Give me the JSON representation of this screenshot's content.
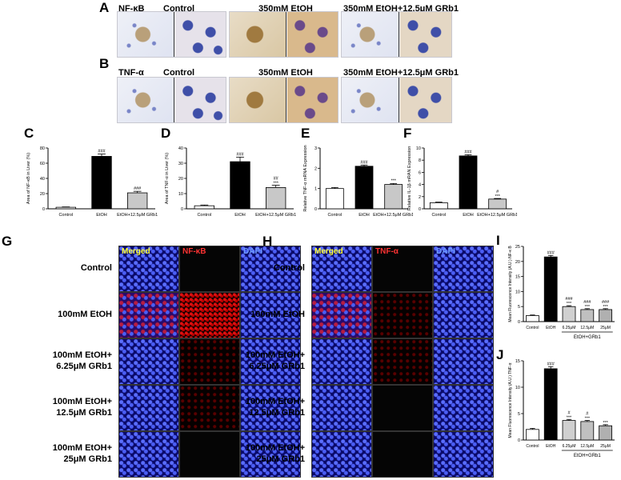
{
  "panels": {
    "A": {
      "letter": "A",
      "marker": "NF-κB",
      "titles": [
        "Control",
        "350mM EtOH",
        "350mM EtOH+12.5μM GRb1"
      ]
    },
    "B": {
      "letter": "B",
      "marker": "TNF-α",
      "titles": [
        "Control",
        "350mM EtOH",
        "350mM EtOH+12.5μM GRb1"
      ]
    },
    "G": {
      "letter": "G",
      "headers": [
        "Merged",
        "NF-κB",
        "DAPI"
      ],
      "rows": [
        "Control",
        "100mM EtOH",
        "100mM EtOH+ 6.25μM GRb1",
        "100mM EtOH+ 12.5μM GRb1",
        "100mM EtOH+ 25μM GRb1"
      ]
    },
    "H": {
      "letter": "H",
      "headers": [
        "Merged",
        "TNF-α",
        "DAPI"
      ],
      "rows": [
        "Control",
        "100mM EtOH",
        "100mM EtOH+ 6.25μM GRb1",
        "100mM EtOH+ 12.5μM GRb1",
        "100mM EtOH+ 25μM GRb1"
      ]
    }
  },
  "chart_data": [
    {
      "panel": "C",
      "type": "bar",
      "ylabel": "Area of NF-κB  in Liver (%)",
      "categories": [
        "Control",
        "EtOH",
        "EtOH+12.5μM GRb1"
      ],
      "values": [
        2,
        69,
        21
      ],
      "errors": [
        0.5,
        3,
        2
      ],
      "ylim": [
        0,
        80
      ],
      "yticks": [
        "0",
        "20",
        "40",
        "60",
        "80"
      ],
      "sig": [
        "",
        "###",
        "###"
      ],
      "sig2": [
        "",
        "",
        ""
      ],
      "fills": [
        "#ffffff",
        "#000000",
        "#c8c8c8"
      ]
    },
    {
      "panel": "D",
      "type": "bar",
      "ylabel": "Area of TNF-α  in Liver (%)",
      "categories": [
        "Control",
        "EtOH",
        "EtOH+12.5μM GRb1"
      ],
      "values": [
        2,
        31,
        14
      ],
      "errors": [
        0.5,
        3,
        1.5
      ],
      "ylim": [
        0,
        40
      ],
      "yticks": [
        "0",
        "10",
        "20",
        "30",
        "40"
      ],
      "sig": [
        "",
        "###",
        "##"
      ],
      "sig2": [
        "",
        "",
        "***"
      ],
      "fills": [
        "#ffffff",
        "#000000",
        "#c8c8c8"
      ]
    },
    {
      "panel": "E",
      "type": "bar",
      "ylabel": "Relative TNF-α mRNA Expression",
      "categories": [
        "Control",
        "EtOH",
        "EtOH+12.5μM GRb1"
      ],
      "values": [
        1,
        2.1,
        1.2
      ],
      "errors": [
        0.05,
        0.06,
        0.05
      ],
      "ylim": [
        0,
        3
      ],
      "yticks": [
        "0",
        "1",
        "2",
        "3"
      ],
      "sig": [
        "",
        "###",
        "***"
      ],
      "sig2": [
        "",
        "",
        ""
      ],
      "fills": [
        "#ffffff",
        "#000000",
        "#c8c8c8"
      ]
    },
    {
      "panel": "F",
      "type": "bar",
      "ylabel": "Relative IL-1β  mRAN Expression",
      "categories": [
        "Control",
        "EtOH",
        "EtOH+12.5μM GRb1"
      ],
      "values": [
        1,
        8.7,
        1.6
      ],
      "errors": [
        0.1,
        0.2,
        0.1
      ],
      "ylim": [
        0,
        10
      ],
      "yticks": [
        "0",
        "2",
        "4",
        "6",
        "8",
        "10"
      ],
      "sig": [
        "",
        "###",
        "#"
      ],
      "sig2": [
        "",
        "",
        "***"
      ],
      "fills": [
        "#ffffff",
        "#000000",
        "#c8c8c8"
      ]
    },
    {
      "panel": "I",
      "type": "bar",
      "ylabel": "Mean Fluorescence Intensity (A.U.) NF-κ B",
      "categories": [
        "Control",
        "EtOH",
        "6.25μM",
        "12.5μM",
        "25μM"
      ],
      "values": [
        2,
        21.5,
        5,
        4,
        4
      ],
      "errors": [
        0.2,
        0.5,
        0.3,
        0.3,
        0.3
      ],
      "ylim": [
        0,
        25
      ],
      "yticks": [
        "0",
        "5",
        "10",
        "15",
        "20",
        "25"
      ],
      "sig": [
        "",
        "###",
        "###",
        "###",
        "###"
      ],
      "sig2": [
        "",
        "",
        "***",
        "***",
        "***"
      ],
      "group_label": "EtOH+GRb1",
      "fills": [
        "#ffffff",
        "#000000",
        "#d0d0d0",
        "#c0c0c0",
        "#b0b0b0"
      ]
    },
    {
      "panel": "J",
      "type": "bar",
      "ylabel": "Mean Fluorescence Intensity (A.U.) TNF-α",
      "categories": [
        "Control",
        "EtOH",
        "6.25μM",
        "12.5μM",
        "25μM"
      ],
      "values": [
        2,
        13.5,
        3.7,
        3.5,
        2.7
      ],
      "errors": [
        0.2,
        0.4,
        0.2,
        0.2,
        0.2
      ],
      "ylim": [
        0,
        15
      ],
      "yticks": [
        "0",
        "5",
        "10",
        "15"
      ],
      "sig": [
        "",
        "###",
        "#",
        "#",
        ""
      ],
      "sig2": [
        "",
        "",
        "***",
        "***",
        "***"
      ],
      "group_label": "EtOH+GRb1",
      "fills": [
        "#ffffff",
        "#000000",
        "#d0d0d0",
        "#c0c0c0",
        "#b0b0b0"
      ]
    }
  ]
}
